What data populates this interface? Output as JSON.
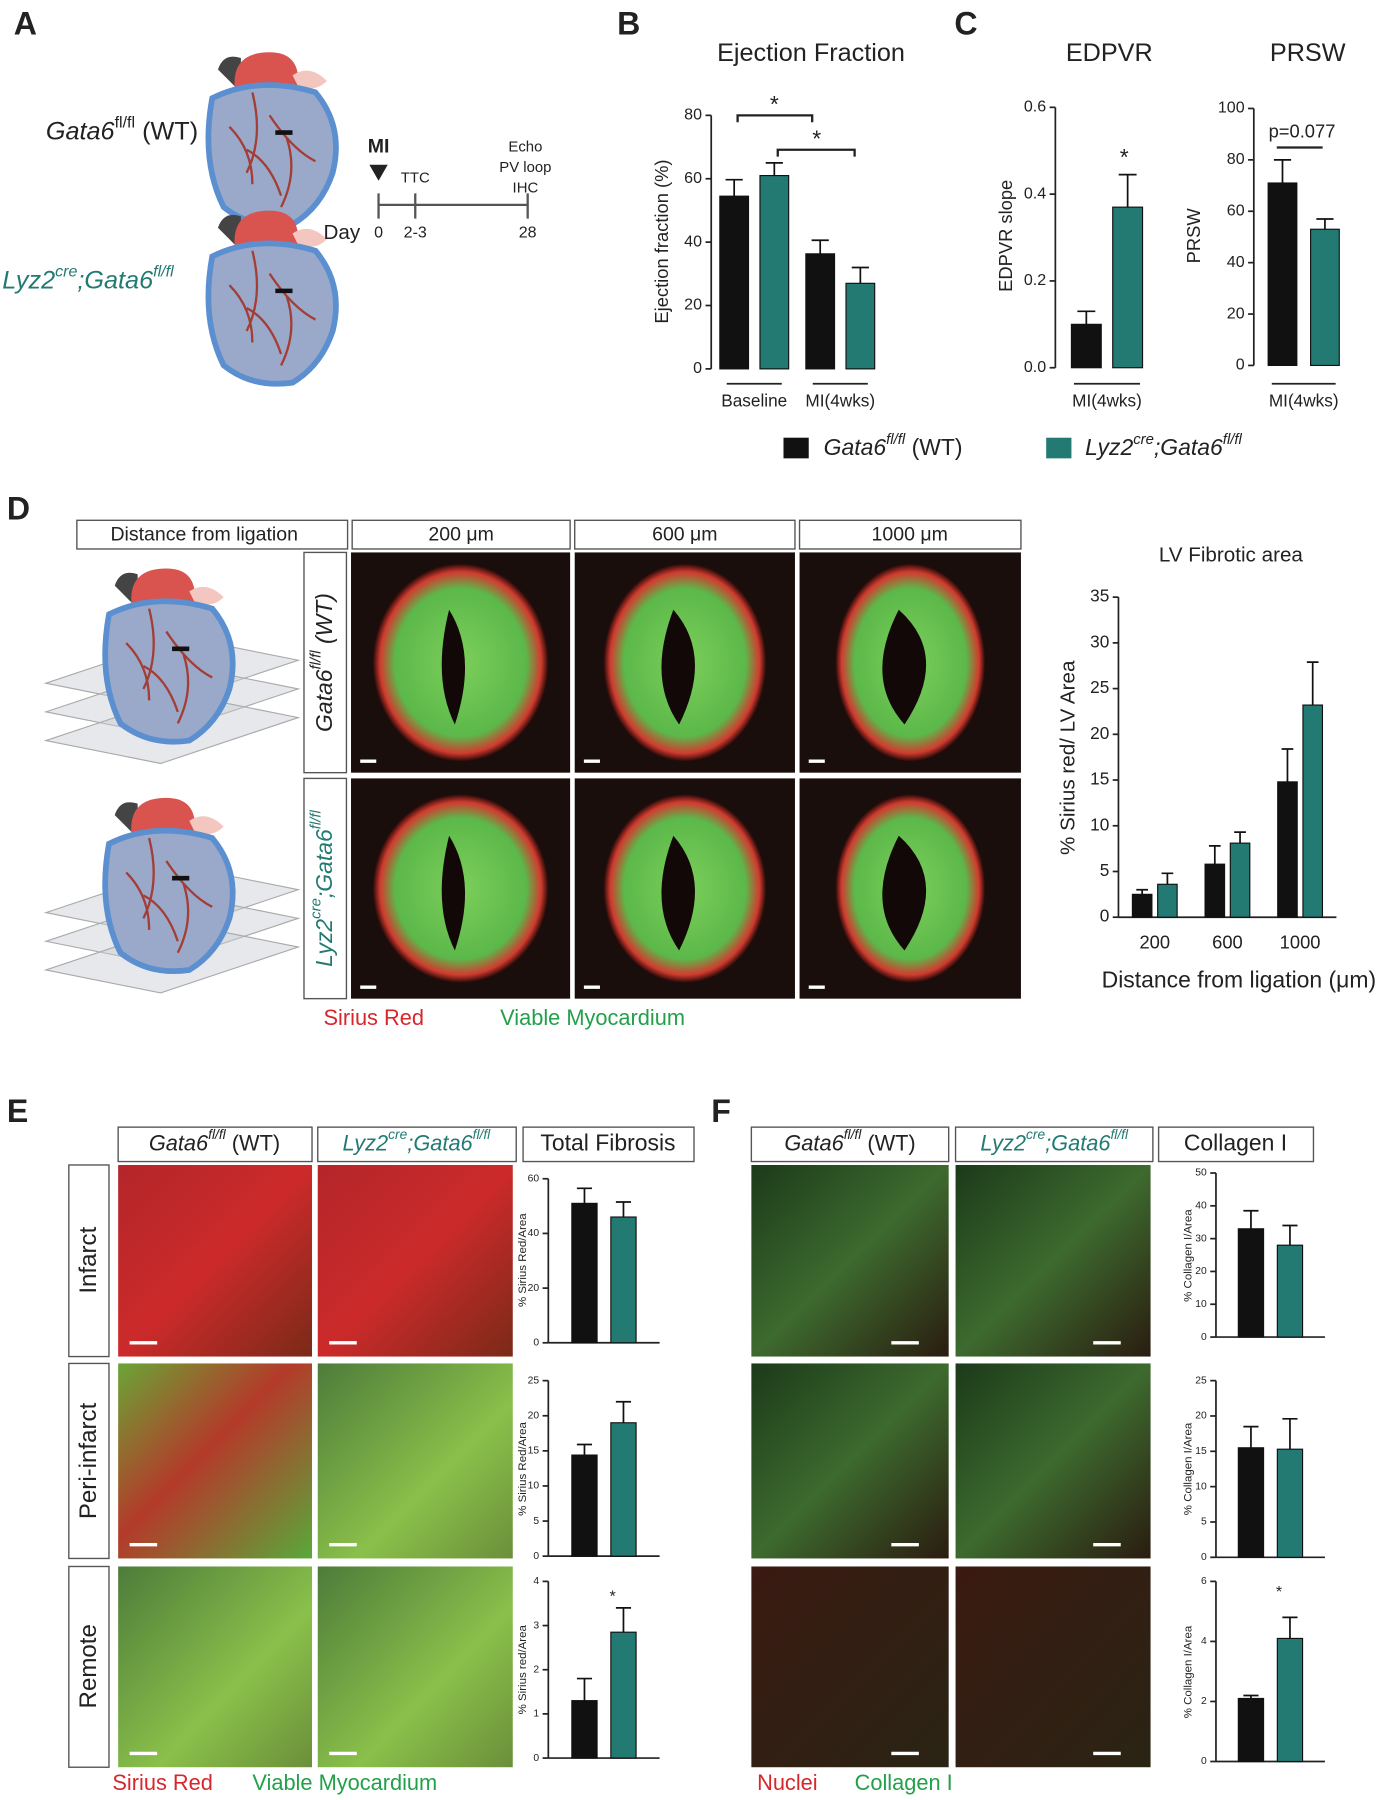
{
  "panels": [
    "A",
    "B",
    "C",
    "D",
    "E",
    "F"
  ],
  "panel_a": {
    "wt": {
      "base": "Gata6",
      "sup": "fl/fl",
      "rest": " (WT)"
    },
    "ko": {
      "pre": "Lyz2",
      "sup1": "cre",
      "mid": ";Gata6",
      "sup2": "fl/fl"
    },
    "timeline": {
      "event": "MI",
      "ttc": "TTC",
      "assays": [
        "Echo",
        "PV loop",
        "IHC"
      ],
      "day": "Day",
      "days": [
        "0",
        "2-3",
        "28"
      ]
    }
  },
  "legend": [
    {
      "base": "Gata6",
      "sup": "fl/fl",
      "rest": " (WT)",
      "color": "#111111"
    },
    {
      "pre": "Lyz2",
      "sup1": "cre",
      "mid": ";Gata6",
      "sup2": "fl/fl",
      "color": "#237a73"
    }
  ],
  "panel_d": {
    "header": "Distance from ligation",
    "distances": [
      "200 μm",
      "600 μm",
      "1000 μm"
    ],
    "wt": {
      "base": "Gata6",
      "sup": "fl/fl",
      "rest": " (WT)"
    },
    "ko": {
      "pre": "Lyz2",
      "sup1": "cre",
      "mid": ";Gata6",
      "sup2": "fl/fl"
    },
    "caption": [
      "Sirius Red",
      "Viable Myocardium"
    ]
  },
  "panel_e": {
    "wt": {
      "base": "Gata6",
      "sup": "fl/fl",
      "rest": " (WT)"
    },
    "ko": {
      "pre": "Lyz2",
      "sup1": "cre",
      "mid": ";Gata6",
      "sup2": "fl/fl"
    },
    "quant": "Total Fibrosis",
    "rows": [
      "Infarct",
      "Peri-infarct",
      "Remote"
    ],
    "caption": [
      "Sirius Red",
      "Viable Myocardium"
    ]
  },
  "panel_f": {
    "wt": {
      "base": "Gata6",
      "sup": "fl/fl",
      "rest": " (WT)"
    },
    "ko": {
      "pre": "Lyz2",
      "sup1": "cre",
      "mid": ";Gata6",
      "sup2": "fl/fl"
    },
    "quant": "Collagen I",
    "caption": [
      "Nuclei",
      "Collagen I"
    ]
  },
  "chart_data": [
    {
      "type": "bar",
      "title": "Ejection Fraction",
      "ylabel": "Ejection fraction (%)",
      "categories": [
        "Baseline",
        "MI(4wks)"
      ],
      "series": [
        {
          "color": "#111111",
          "values": [
            54.5,
            36.3
          ],
          "errors": [
            5.2,
            4.3
          ]
        },
        {
          "color": "#237a73",
          "values": [
            61,
            27
          ],
          "errors": [
            4,
            5
          ]
        }
      ],
      "ylim": [
        0,
        80
      ],
      "yticks": [
        0,
        20,
        40,
        60,
        80
      ],
      "annotations": [
        "*",
        "*"
      ]
    },
    {
      "type": "bar",
      "title": "EDPVR",
      "ylabel": "EDPVR slope",
      "categories": [
        "MI(4wks)"
      ],
      "series": [
        {
          "color": "#111111",
          "values": [
            0.1
          ],
          "errors": [
            0.03
          ]
        },
        {
          "color": "#237a73",
          "values": [
            0.37
          ],
          "errors": [
            0.075
          ]
        }
      ],
      "ylim": [
        0,
        0.6
      ],
      "yticks": [
        {
          "value": 0,
          "label": "0.0"
        },
        0.2,
        0.4,
        0.6
      ],
      "annotations": [
        "*"
      ]
    },
    {
      "type": "bar",
      "title": "PRSW",
      "ylabel": "PRSW",
      "categories": [
        "MI(4wks)"
      ],
      "series": [
        {
          "color": "#111111",
          "values": [
            71
          ],
          "errors": [
            9
          ]
        },
        {
          "color": "#237a73",
          "values": [
            53
          ],
          "errors": [
            4
          ]
        }
      ],
      "ylim": [
        0,
        100
      ],
      "yticks": [
        0,
        20,
        40,
        60,
        80,
        100
      ],
      "annotations": [
        "p=0.077"
      ]
    },
    {
      "type": "bar",
      "title": "LV Fibrotic area",
      "ylabel": "% Sirius red/ LV Area",
      "xlabel": "Distance from ligation (μm)",
      "categories": [
        "200",
        "600",
        "1000"
      ],
      "series": [
        {
          "color": "#111111",
          "values": [
            2.5,
            5.8,
            14.8
          ],
          "errors": [
            0.5,
            2,
            3.6
          ]
        },
        {
          "color": "#237a73",
          "values": [
            3.6,
            8.1,
            23.2
          ],
          "errors": [
            1.2,
            1.2,
            4.7
          ]
        }
      ],
      "ylim": [
        0,
        35
      ],
      "yticks": [
        0,
        5,
        10,
        15,
        20,
        25,
        30,
        35
      ]
    },
    {
      "type": "bar",
      "ylabel": "% Sirius Red/Area",
      "categories": [
        null
      ],
      "series": [
        {
          "color": "#111111",
          "values": [
            51
          ],
          "errors": [
            5.5
          ]
        },
        {
          "color": "#237a73",
          "values": [
            46
          ],
          "errors": [
            5.5
          ]
        }
      ],
      "ylim": [
        0,
        60
      ],
      "yticks": [
        0,
        20,
        40,
        60
      ]
    },
    {
      "type": "bar",
      "ylabel": "% Sirius Red/Area",
      "categories": [
        null
      ],
      "series": [
        {
          "color": "#111111",
          "values": [
            14.4
          ],
          "errors": [
            1.5
          ]
        },
        {
          "color": "#237a73",
          "values": [
            19
          ],
          "errors": [
            3
          ]
        }
      ],
      "ylim": [
        0,
        25
      ],
      "yticks": [
        0,
        5,
        10,
        15,
        20,
        25
      ]
    },
    {
      "type": "bar",
      "ylabel": "% Sirius red/Area",
      "categories": [
        null
      ],
      "series": [
        {
          "color": "#111111",
          "values": [
            1.3
          ],
          "errors": [
            0.5
          ]
        },
        {
          "color": "#237a73",
          "values": [
            2.85
          ],
          "errors": [
            0.55
          ]
        }
      ],
      "ylim": [
        0,
        4
      ],
      "yticks": [
        0,
        1,
        2,
        3,
        4
      ],
      "annotations": [
        "*"
      ]
    },
    {
      "type": "bar",
      "ylabel": "% Collagen I/Area",
      "categories": [
        null
      ],
      "series": [
        {
          "color": "#111111",
          "values": [
            33
          ],
          "errors": [
            5.5
          ]
        },
        {
          "color": "#237a73",
          "values": [
            28
          ],
          "errors": [
            6
          ]
        }
      ],
      "ylim": [
        0,
        50
      ],
      "yticks": [
        0,
        10,
        20,
        30,
        40,
        50
      ]
    },
    {
      "type": "bar",
      "ylabel": "% Collagen I/Area",
      "categories": [
        null
      ],
      "series": [
        {
          "color": "#111111",
          "values": [
            15.5
          ],
          "errors": [
            3
          ]
        },
        {
          "color": "#237a73",
          "values": [
            15.3
          ],
          "errors": [
            4.3
          ]
        }
      ],
      "ylim": [
        0,
        25
      ],
      "yticks": [
        0,
        5,
        10,
        15,
        20,
        25
      ]
    },
    {
      "type": "bar",
      "ylabel": "% Collagen I/Area",
      "categories": [
        null
      ],
      "series": [
        {
          "color": "#111111",
          "values": [
            2.1
          ],
          "errors": [
            0.1
          ]
        },
        {
          "color": "#237a73",
          "values": [
            4.1
          ],
          "errors": [
            0.7
          ]
        }
      ],
      "ylim": [
        0,
        6
      ],
      "yticks": [
        0,
        2,
        4,
        6
      ],
      "annotations": [
        "*"
      ]
    }
  ]
}
